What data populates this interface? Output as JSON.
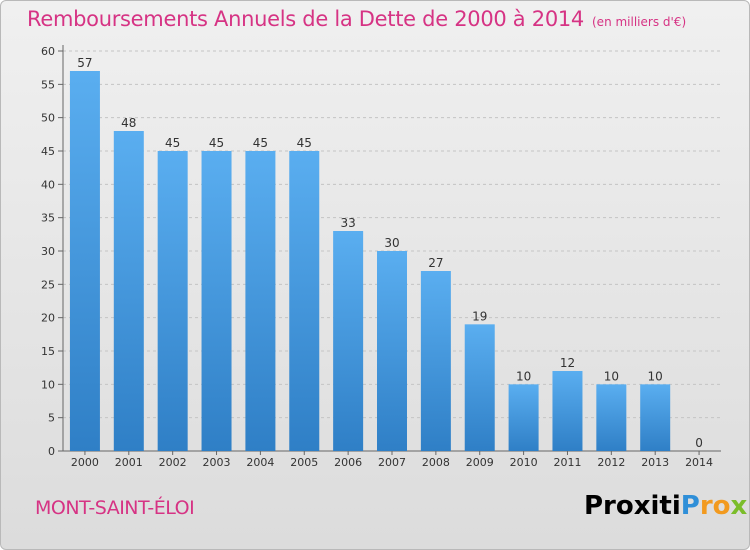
{
  "title": "Remboursements Annuels de la Dette de 2000 à 2014",
  "unit": "(en milliers d'€)",
  "commune": "MONT-SAINT-ÉLOI",
  "logo": "Proxiti",
  "colors": {
    "accent": "#d63384",
    "bar_top": "#5aaef0",
    "bar_bottom": "#2f7fc6"
  },
  "chart_data": {
    "type": "bar",
    "title": "Remboursements Annuels de la Dette de 2000 à 2014",
    "xlabel": "",
    "ylabel": "",
    "categories": [
      "2000",
      "2001",
      "2002",
      "2003",
      "2004",
      "2005",
      "2006",
      "2007",
      "2008",
      "2009",
      "2010",
      "2011",
      "2012",
      "2013",
      "2014"
    ],
    "values": [
      57,
      48,
      45,
      45,
      45,
      45,
      33,
      30,
      27,
      19,
      10,
      12,
      10,
      10,
      0
    ],
    "yticks": [
      0,
      5,
      10,
      15,
      20,
      25,
      30,
      35,
      40,
      45,
      50,
      55,
      60
    ],
    "ylim": [
      0,
      60
    ],
    "grid": true
  }
}
